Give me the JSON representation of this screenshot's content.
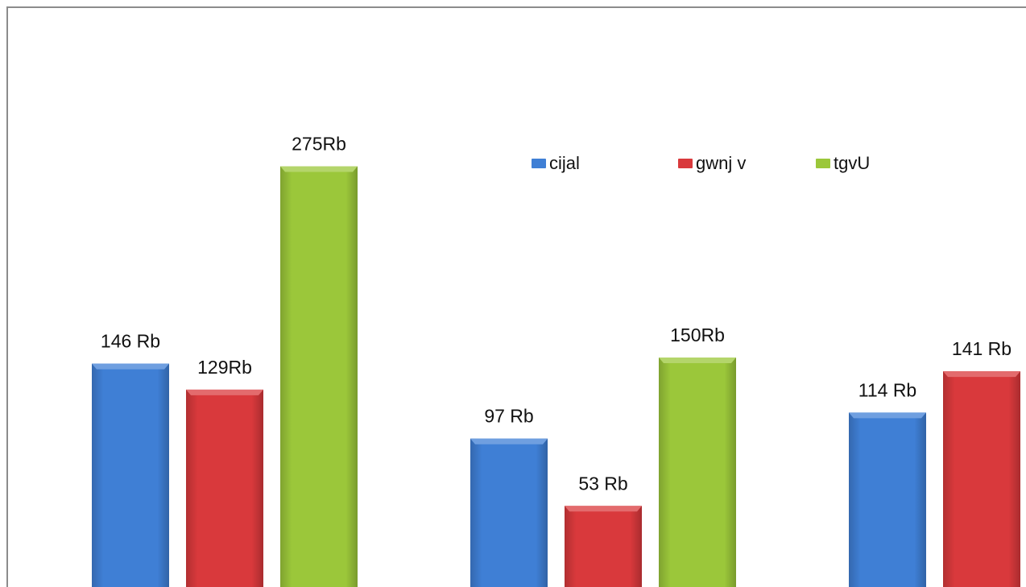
{
  "chart_data": {
    "type": "bar",
    "title": "",
    "xlabel": "",
    "ylabel": "",
    "categories": [
      "",
      "",
      ""
    ],
    "ylim": [
      0,
      300
    ],
    "grid": false,
    "legend_position": "top-right",
    "series": [
      {
        "name": "cijal",
        "color": "#3f7fd5",
        "values": [
          146,
          97,
          114
        ],
        "labels": [
          "146 Rb",
          "97 Rb",
          "114 Rb"
        ]
      },
      {
        "name": "gwnj v",
        "color": "#d9393c",
        "values": [
          129,
          53,
          141
        ],
        "labels": [
          "129Rb",
          "53 Rb",
          "141 Rb"
        ]
      },
      {
        "name": "tgvU",
        "color": "#9bc73a",
        "values": [
          275,
          150,
          null
        ],
        "labels": [
          "275Rb",
          "150Rb",
          ""
        ]
      }
    ]
  },
  "colors": {
    "background": "#ffffff",
    "border": "#8c8c8c",
    "text": "#111111"
  }
}
